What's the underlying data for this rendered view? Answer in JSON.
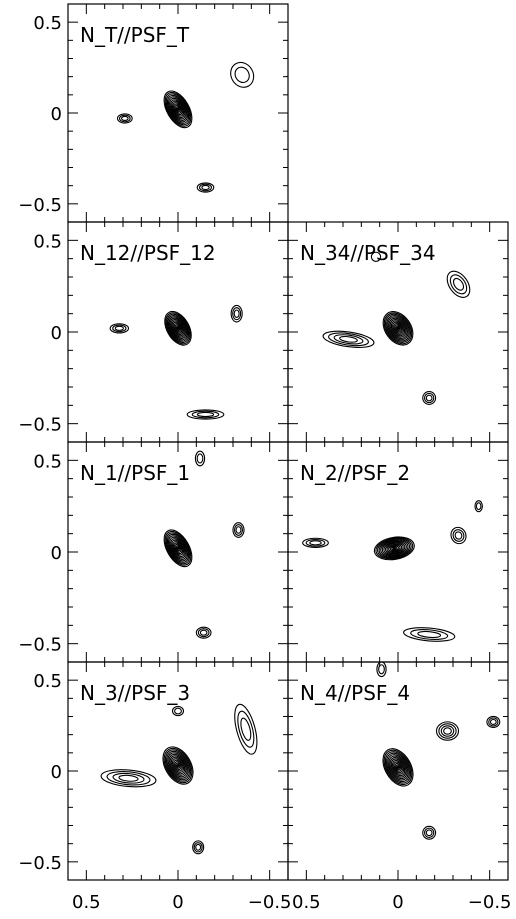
{
  "chart_data": [
    {
      "type": "contour",
      "panel_id": "T",
      "title": "N_T//PSF_T",
      "xlim": [
        0.6,
        -0.6
      ],
      "ylim": [
        -0.6,
        0.6
      ],
      "xticks": [
        0.5,
        0,
        -0.5
      ],
      "yticks": [
        0.5,
        0,
        -0.5
      ],
      "components": [
        {
          "x": 0.0,
          "y": 0.02,
          "rx": 0.06,
          "ry": 0.11,
          "angle": -30,
          "levels": 12
        },
        {
          "x": -0.35,
          "y": 0.21,
          "rx": 0.06,
          "ry": 0.07,
          "angle": -30,
          "levels": 2
        },
        {
          "x": 0.29,
          "y": -0.03,
          "rx": 0.04,
          "ry": 0.025,
          "angle": 0,
          "levels": 3
        },
        {
          "x": -0.15,
          "y": -0.41,
          "rx": 0.045,
          "ry": 0.025,
          "angle": 0,
          "levels": 3
        }
      ]
    },
    {
      "type": "contour",
      "panel_id": "12",
      "title": "N_12//PSF_12",
      "xlim": [
        0.6,
        -0.6
      ],
      "ylim": [
        -0.6,
        0.6
      ],
      "xticks": [
        0.5,
        0,
        -0.5
      ],
      "yticks": [
        0.5,
        0,
        -0.5
      ],
      "components": [
        {
          "x": 0.0,
          "y": 0.02,
          "rx": 0.06,
          "ry": 0.1,
          "angle": -30,
          "levels": 12
        },
        {
          "x": 0.32,
          "y": 0.02,
          "rx": 0.05,
          "ry": 0.025,
          "angle": 0,
          "levels": 3
        },
        {
          "x": -0.32,
          "y": 0.1,
          "rx": 0.03,
          "ry": 0.045,
          "angle": 0,
          "levels": 3
        },
        {
          "x": -0.15,
          "y": -0.45,
          "rx": 0.1,
          "ry": 0.025,
          "angle": 0,
          "levels": 3
        }
      ]
    },
    {
      "type": "contour",
      "panel_id": "34",
      "title": "N_34//PSF_34",
      "xlim": [
        0.6,
        -0.6
      ],
      "ylim": [
        -0.6,
        0.6
      ],
      "xticks": [
        0.5,
        0,
        -0.5
      ],
      "yticks": [
        0.5,
        0,
        -0.5
      ],
      "components": [
        {
          "x": 0.0,
          "y": 0.02,
          "rx": 0.07,
          "ry": 0.1,
          "angle": -35,
          "levels": 12
        },
        {
          "x": 0.27,
          "y": -0.04,
          "rx": 0.14,
          "ry": 0.04,
          "angle": 8,
          "levels": 4
        },
        {
          "x": -0.33,
          "y": 0.26,
          "rx": 0.05,
          "ry": 0.08,
          "angle": -35,
          "levels": 3
        },
        {
          "x": -0.17,
          "y": -0.36,
          "rx": 0.035,
          "ry": 0.035,
          "angle": 0,
          "levels": 3
        },
        {
          "x": 0.12,
          "y": 0.41,
          "rx": 0.025,
          "ry": 0.025,
          "angle": 0,
          "levels": 1
        }
      ]
    },
    {
      "type": "contour",
      "panel_id": "1",
      "title": "N_1//PSF_1",
      "xlim": [
        0.6,
        -0.6
      ],
      "ylim": [
        -0.6,
        0.6
      ],
      "xticks": [
        0.5,
        0,
        -0.5
      ],
      "yticks": [
        0.5,
        0,
        -0.5
      ],
      "components": [
        {
          "x": 0.0,
          "y": 0.02,
          "rx": 0.06,
          "ry": 0.11,
          "angle": -30,
          "levels": 12
        },
        {
          "x": -0.33,
          "y": 0.12,
          "rx": 0.03,
          "ry": 0.04,
          "angle": 0,
          "levels": 3
        },
        {
          "x": -0.14,
          "y": -0.44,
          "rx": 0.04,
          "ry": 0.03,
          "angle": 0,
          "levels": 3
        },
        {
          "x": -0.12,
          "y": 0.51,
          "rx": 0.025,
          "ry": 0.04,
          "angle": 0,
          "levels": 2
        }
      ]
    },
    {
      "type": "contour",
      "panel_id": "2",
      "title": "N_2//PSF_2",
      "xlim": [
        0.6,
        -0.6
      ],
      "ylim": [
        -0.6,
        0.6
      ],
      "xticks": [
        0.5,
        0,
        -0.5
      ],
      "yticks": [
        0.5,
        0,
        -0.5
      ],
      "components": [
        {
          "x": 0.02,
          "y": 0.02,
          "rx": 0.11,
          "ry": 0.06,
          "angle": -10,
          "levels": 12
        },
        {
          "x": 0.45,
          "y": 0.05,
          "rx": 0.07,
          "ry": 0.025,
          "angle": 0,
          "levels": 3
        },
        {
          "x": -0.33,
          "y": 0.09,
          "rx": 0.04,
          "ry": 0.045,
          "angle": -25,
          "levels": 3
        },
        {
          "x": -0.44,
          "y": 0.25,
          "rx": 0.02,
          "ry": 0.03,
          "angle": 0,
          "levels": 2
        },
        {
          "x": -0.17,
          "y": -0.45,
          "rx": 0.14,
          "ry": 0.035,
          "angle": 5,
          "levels": 3
        }
      ]
    },
    {
      "type": "contour",
      "panel_id": "3",
      "title": "N_3//PSF_3",
      "xlim": [
        0.6,
        -0.6
      ],
      "ylim": [
        -0.6,
        0.6
      ],
      "xticks": [
        0.5,
        0,
        -0.5
      ],
      "yticks": [
        0.5,
        0,
        -0.5
      ],
      "components": [
        {
          "x": 0.0,
          "y": 0.03,
          "rx": 0.07,
          "ry": 0.11,
          "angle": -30,
          "levels": 12
        },
        {
          "x": 0.27,
          "y": -0.04,
          "rx": 0.15,
          "ry": 0.045,
          "angle": 5,
          "levels": 4
        },
        {
          "x": -0.37,
          "y": 0.23,
          "rx": 0.05,
          "ry": 0.14,
          "angle": -15,
          "levels": 3
        },
        {
          "x": 0.0,
          "y": 0.33,
          "rx": 0.03,
          "ry": 0.025,
          "angle": 0,
          "levels": 2
        },
        {
          "x": -0.11,
          "y": -0.42,
          "rx": 0.03,
          "ry": 0.035,
          "angle": 0,
          "levels": 3
        }
      ]
    },
    {
      "type": "contour",
      "panel_id": "4",
      "title": "N_4//PSF_4",
      "xlim": [
        0.6,
        -0.6
      ],
      "ylim": [
        -0.6,
        0.6
      ],
      "xticks": [
        0.5,
        0,
        -0.5
      ],
      "yticks": [
        0.5,
        0,
        -0.5
      ],
      "components": [
        {
          "x": 0.0,
          "y": 0.02,
          "rx": 0.07,
          "ry": 0.11,
          "angle": -30,
          "levels": 12
        },
        {
          "x": -0.27,
          "y": 0.22,
          "rx": 0.06,
          "ry": 0.05,
          "angle": 0,
          "levels": 4
        },
        {
          "x": -0.52,
          "y": 0.27,
          "rx": 0.035,
          "ry": 0.03,
          "angle": 0,
          "levels": 3
        },
        {
          "x": -0.17,
          "y": -0.34,
          "rx": 0.035,
          "ry": 0.035,
          "angle": 0,
          "levels": 3
        },
        {
          "x": 0.09,
          "y": 0.56,
          "rx": 0.025,
          "ry": 0.04,
          "angle": 0,
          "levels": 2
        }
      ]
    }
  ],
  "axis_tick_labels": {
    "left_y": [
      "0.5",
      "0",
      "−0.5"
    ],
    "bottom_x_left": [
      "0.5",
      "0",
      "−0.5"
    ],
    "bottom_x_right": [
      "0.5",
      "0",
      "−0.5"
    ]
  }
}
